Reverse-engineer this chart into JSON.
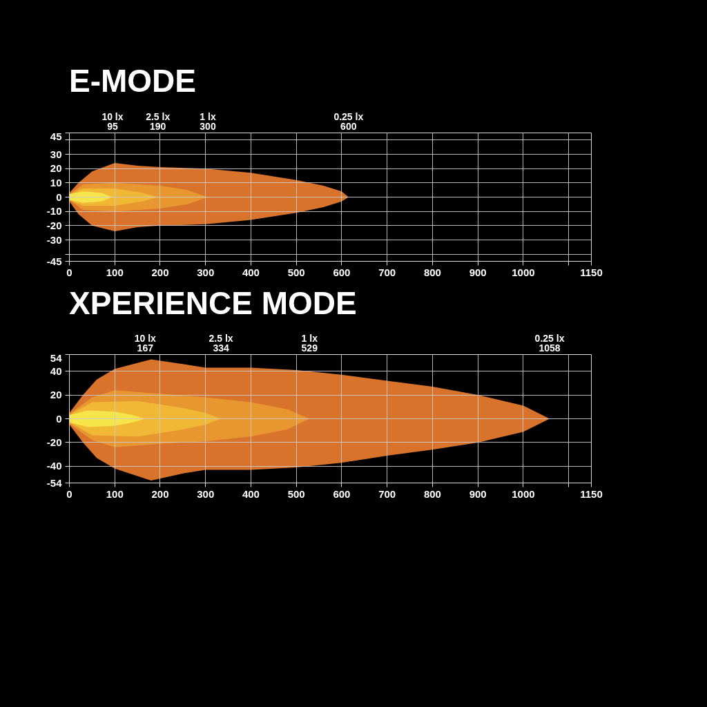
{
  "chart_data": [
    {
      "type": "area",
      "title": "E-MODE",
      "xlim": [
        0,
        1150
      ],
      "ylim": [
        -45,
        45
      ],
      "xticks": [
        0,
        100,
        200,
        300,
        400,
        500,
        600,
        700,
        800,
        900,
        1000,
        {
          "value": 1100,
          "label": null
        },
        1150
      ],
      "yticks": [
        -45,
        {
          "value": -40,
          "label": null
        },
        -30,
        -20,
        -10,
        0,
        10,
        20,
        30,
        {
          "value": 40,
          "label": null
        },
        45
      ],
      "grid": true,
      "series": [
        {
          "color": "#f5e44a",
          "x": [
            0,
            30,
            70,
            95
          ],
          "values": [
            2,
            4,
            3,
            0
          ]
        },
        {
          "color": "#f5e44a",
          "x": [
            0,
            30,
            70,
            95
          ],
          "values": [
            -2,
            -4,
            -3,
            0
          ]
        },
        {
          "color": "#f0b834",
          "x": [
            0,
            30,
            100,
            160,
            195
          ],
          "values": [
            2,
            6,
            6,
            3,
            0
          ]
        },
        {
          "color": "#f0b834",
          "x": [
            0,
            30,
            100,
            160,
            195
          ],
          "values": [
            -2,
            -6,
            -6,
            -3,
            0
          ]
        },
        {
          "color": "#e8962f",
          "x": [
            0,
            30,
            100,
            200,
            260,
            305
          ],
          "values": [
            2,
            9,
            10,
            8,
            5,
            0
          ]
        },
        {
          "color": "#e8962f",
          "x": [
            0,
            30,
            100,
            200,
            260,
            305
          ],
          "values": [
            -2,
            -9,
            -10,
            -8,
            -5,
            0
          ]
        },
        {
          "color": "#d9722a",
          "x": [
            0,
            20,
            50,
            100,
            150,
            200,
            300,
            400,
            500,
            560,
            600,
            615
          ],
          "values": [
            3,
            10,
            18,
            24,
            22,
            21,
            20,
            17,
            12,
            8,
            4,
            0
          ]
        },
        {
          "color": "#d9722a",
          "x": [
            0,
            20,
            50,
            100,
            150,
            200,
            300,
            400,
            500,
            560,
            600,
            615
          ],
          "values": [
            -3,
            -12,
            -20,
            -24,
            -21,
            -20,
            -19,
            -16,
            -11,
            -7,
            -3,
            0
          ]
        }
      ],
      "annotations": [
        "10 lx\n95",
        "2.5 lx\n190",
        "1 lx\n300",
        "0.25 lx\n600"
      ]
    },
    {
      "type": "area",
      "title": "XPERIENCE MODE",
      "xlim": [
        0,
        1150
      ],
      "ylim": [
        -54,
        54
      ],
      "xticks": [
        0,
        100,
        200,
        300,
        400,
        500,
        600,
        700,
        800,
        900,
        1000,
        {
          "value": 1100,
          "label": null
        },
        1150
      ],
      "yticks": [
        -54,
        -40,
        -20,
        0,
        20,
        40,
        54
      ],
      "grid": true,
      "series": [
        {
          "color": "#f5e44a",
          "x": [
            0,
            40,
            100,
            140,
            167
          ],
          "values": [
            3,
            7,
            6,
            3,
            0
          ]
        },
        {
          "color": "#f5e44a",
          "x": [
            0,
            40,
            100,
            140,
            167
          ],
          "values": [
            -3,
            -7,
            -6,
            -3,
            0
          ]
        },
        {
          "color": "#f0b834",
          "x": [
            0,
            50,
            150,
            250,
            300,
            334
          ],
          "values": [
            3,
            14,
            15,
            9,
            5,
            0
          ]
        },
        {
          "color": "#f0b834",
          "x": [
            0,
            50,
            150,
            250,
            300,
            334
          ],
          "values": [
            -3,
            -14,
            -15,
            -9,
            -5,
            0
          ]
        },
        {
          "color": "#e8962f",
          "x": [
            0,
            50,
            100,
            200,
            300,
            400,
            480,
            529
          ],
          "values": [
            4,
            18,
            24,
            21,
            18,
            14,
            8,
            0
          ]
        },
        {
          "color": "#e8962f",
          "x": [
            0,
            50,
            100,
            200,
            300,
            400,
            480,
            529
          ],
          "values": [
            -4,
            -18,
            -24,
            -21,
            -19,
            -15,
            -9,
            0
          ]
        },
        {
          "color": "#d9722a",
          "x": [
            0,
            30,
            60,
            100,
            180,
            250,
            300,
            400,
            500,
            600,
            700,
            800,
            900,
            1000,
            1058
          ],
          "values": [
            5,
            20,
            33,
            42,
            50,
            46,
            43,
            43,
            41,
            37,
            32,
            27,
            20,
            11,
            0
          ]
        },
        {
          "color": "#d9722a",
          "x": [
            0,
            30,
            60,
            100,
            180,
            250,
            300,
            400,
            500,
            600,
            700,
            800,
            900,
            1000,
            1058
          ],
          "values": [
            -5,
            -20,
            -33,
            -42,
            -52,
            -46,
            -43,
            -43,
            -41,
            -37,
            -31,
            -26,
            -20,
            -11,
            0
          ]
        }
      ],
      "annotations": [
        "10 lx\n167",
        "2.5 lx\n334",
        "1 lx\n529",
        "0.25 lx\n1058"
      ]
    }
  ]
}
